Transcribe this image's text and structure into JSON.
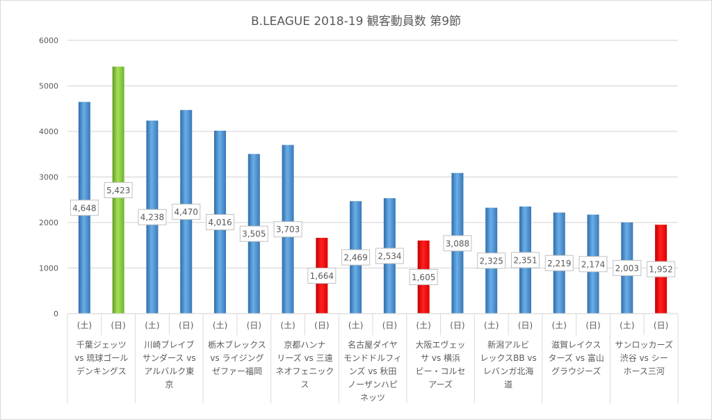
{
  "chart_data": {
    "type": "bar",
    "title": "B.LEAGUE 2018-19 観客動員数 第9節",
    "xlabel": "",
    "ylabel": "",
    "ylim": [
      0,
      6000
    ],
    "yticks": [
      0,
      1000,
      2000,
      3000,
      4000,
      5000,
      6000
    ],
    "grid": true,
    "legend": "none",
    "groups": [
      {
        "label_lines": [
          "千葉ジェッツ",
          "vs 琉球ゴール",
          "デンキングス"
        ],
        "days": [
          "(土)",
          "(日)"
        ],
        "values": [
          4648,
          5423
        ],
        "value_labels": [
          "4,648",
          "5,423"
        ],
        "colors": [
          "blue",
          "green"
        ]
      },
      {
        "label_lines": [
          "川崎ブレイブ",
          "サンダース vs",
          "アルバルク東",
          "京"
        ],
        "days": [
          "(土)",
          "(日)"
        ],
        "values": [
          4238,
          4470
        ],
        "value_labels": [
          "4,238",
          "4,470"
        ],
        "colors": [
          "blue",
          "blue"
        ]
      },
      {
        "label_lines": [
          "栃木ブレックス",
          "vs ライジング",
          "ゼファー福岡"
        ],
        "days": [
          "(土)",
          "(日)"
        ],
        "values": [
          4016,
          3505
        ],
        "value_labels": [
          "4,016",
          "3,505"
        ],
        "colors": [
          "blue",
          "blue"
        ]
      },
      {
        "label_lines": [
          "京都ハンナ",
          "リーズ vs 三遠",
          "ネオフェニック",
          "ス"
        ],
        "days": [
          "(土)",
          "(日)"
        ],
        "values": [
          3703,
          1664
        ],
        "value_labels": [
          "3,703",
          "1,664"
        ],
        "colors": [
          "blue",
          "red"
        ]
      },
      {
        "label_lines": [
          "名古屋ダイヤ",
          "モンドドルフィ",
          "ンズ vs 秋田",
          "ノーザンハピ",
          "ネッツ"
        ],
        "days": [
          "(土)",
          "(日)"
        ],
        "values": [
          2469,
          2534
        ],
        "value_labels": [
          "2,469",
          "2,534"
        ],
        "colors": [
          "blue",
          "blue"
        ]
      },
      {
        "label_lines": [
          "大阪エヴェッ",
          "サ vs 横浜",
          "ビー・コルセ",
          "アーズ"
        ],
        "days": [
          "(土)",
          "(日)"
        ],
        "values": [
          1605,
          3088
        ],
        "value_labels": [
          "1,605",
          "3,088"
        ],
        "colors": [
          "red",
          "blue"
        ]
      },
      {
        "label_lines": [
          "新潟アルビ",
          "レックスBB vs",
          "レバンガ北海",
          "道"
        ],
        "days": [
          "(土)",
          "(日)"
        ],
        "values": [
          2325,
          2351
        ],
        "value_labels": [
          "2,325",
          "2,351"
        ],
        "colors": [
          "blue",
          "blue"
        ]
      },
      {
        "label_lines": [
          "滋賀レイクス",
          "ターズ vs 富山",
          "グラウジーズ"
        ],
        "days": [
          "(土)",
          "(日)"
        ],
        "values": [
          2219,
          2174
        ],
        "value_labels": [
          "2,219",
          "2,174"
        ],
        "colors": [
          "blue",
          "blue"
        ]
      },
      {
        "label_lines": [
          "サンロッカーズ",
          "渋谷 vs シー",
          "ホース三河"
        ],
        "days": [
          "(土)",
          "(日)"
        ],
        "values": [
          2003,
          1952
        ],
        "value_labels": [
          "2,003",
          "1,952"
        ],
        "colors": [
          "blue",
          "red"
        ]
      }
    ],
    "palette": {
      "blue": [
        "#2f6ca8",
        "#6aaee8",
        "#3a78b8"
      ],
      "green": [
        "#5e9a25",
        "#a6e05a",
        "#6fb32e"
      ],
      "red": [
        "#c00000",
        "#ff2020",
        "#e00000"
      ],
      "grid": "#d9d9d9",
      "text": "#595959"
    }
  }
}
